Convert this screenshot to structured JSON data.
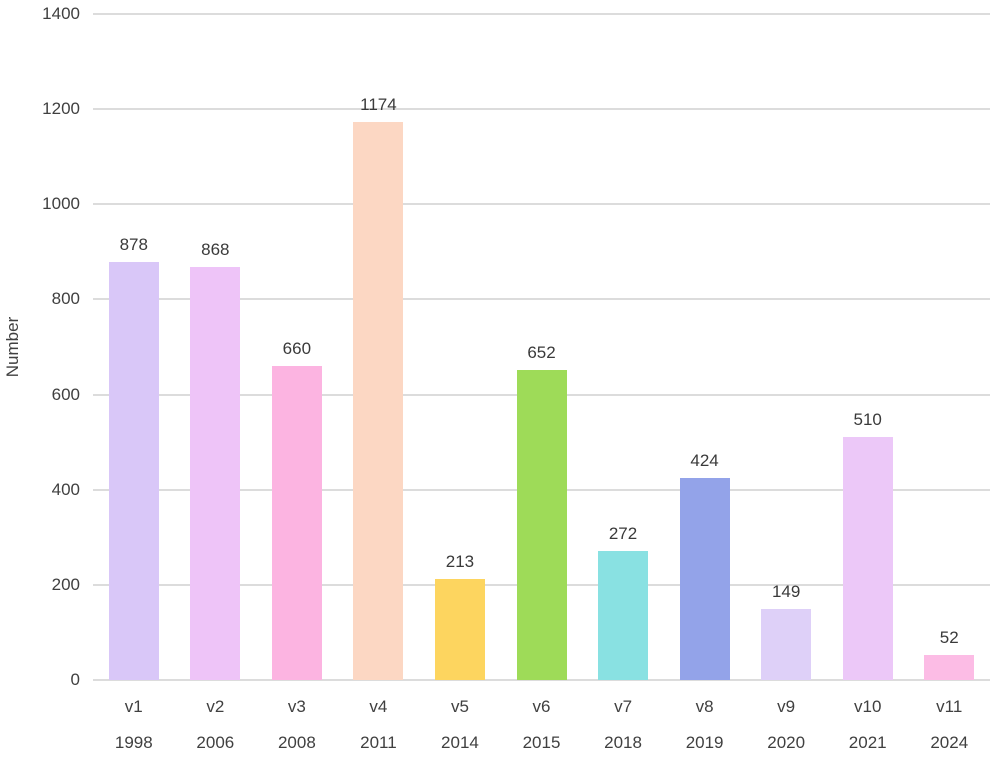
{
  "chart_data": {
    "type": "bar",
    "title": "",
    "xlabel": "",
    "ylabel": "Number",
    "ylim": [
      0,
      1400
    ],
    "yticks": [
      0,
      200,
      400,
      600,
      800,
      1000,
      1200,
      1400
    ],
    "grid": true,
    "legend": false,
    "categories": [
      "v1",
      "v2",
      "v3",
      "v4",
      "v5",
      "v6",
      "v7",
      "v8",
      "v9",
      "v10",
      "v11"
    ],
    "x_sub_labels": [
      "1998",
      "2006",
      "2008",
      "2011",
      "2014",
      "2015",
      "2018",
      "2019",
      "2020",
      "2021",
      "2024"
    ],
    "values": [
      878,
      868,
      660,
      1174,
      213,
      652,
      272,
      424,
      149,
      510,
      52
    ],
    "bar_colors": [
      "#d9c7f8",
      "#eec4f8",
      "#fcb4e1",
      "#fcd7c3",
      "#fdd55f",
      "#9edb58",
      "#89e1e2",
      "#93a3e9",
      "#ded0f8",
      "#ecc8f8",
      "#fcbce5"
    ],
    "gridline_color": "#dcdcdc",
    "text_color": "#404040",
    "background_color": "#ffffff"
  }
}
